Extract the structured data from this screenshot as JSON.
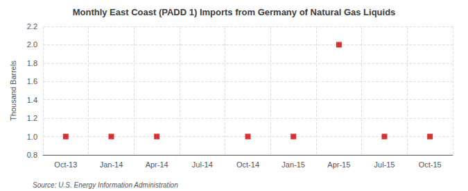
{
  "chart_data": {
    "type": "scatter",
    "title": "Monthly East Coast (PADD 1) Imports from Germany of Natural Gas Liquids",
    "ylabel": "Thousand Barrels",
    "annotations": [
      "Source: U.S. Energy Information Administration"
    ],
    "categories": [
      "Oct-13",
      "Jan-14",
      "Apr-14",
      "Jul-14",
      "Oct-14",
      "Jan-15",
      "Apr-15",
      "Jul-15",
      "Oct-15"
    ],
    "values": [
      1.0,
      1.0,
      1.0,
      null,
      1.0,
      1.0,
      2.0,
      1.0,
      1.0
    ],
    "color": "#cc0000",
    "marker": "square",
    "ylim": [
      0.8,
      2.2
    ],
    "yticks": [
      0.8,
      {
        "value": 1.0,
        "label": "1.0"
      },
      1.2,
      1.4,
      1.6,
      1.8,
      {
        "value": 2.0,
        "label": "2.0"
      },
      2.2
    ],
    "grid": true
  }
}
